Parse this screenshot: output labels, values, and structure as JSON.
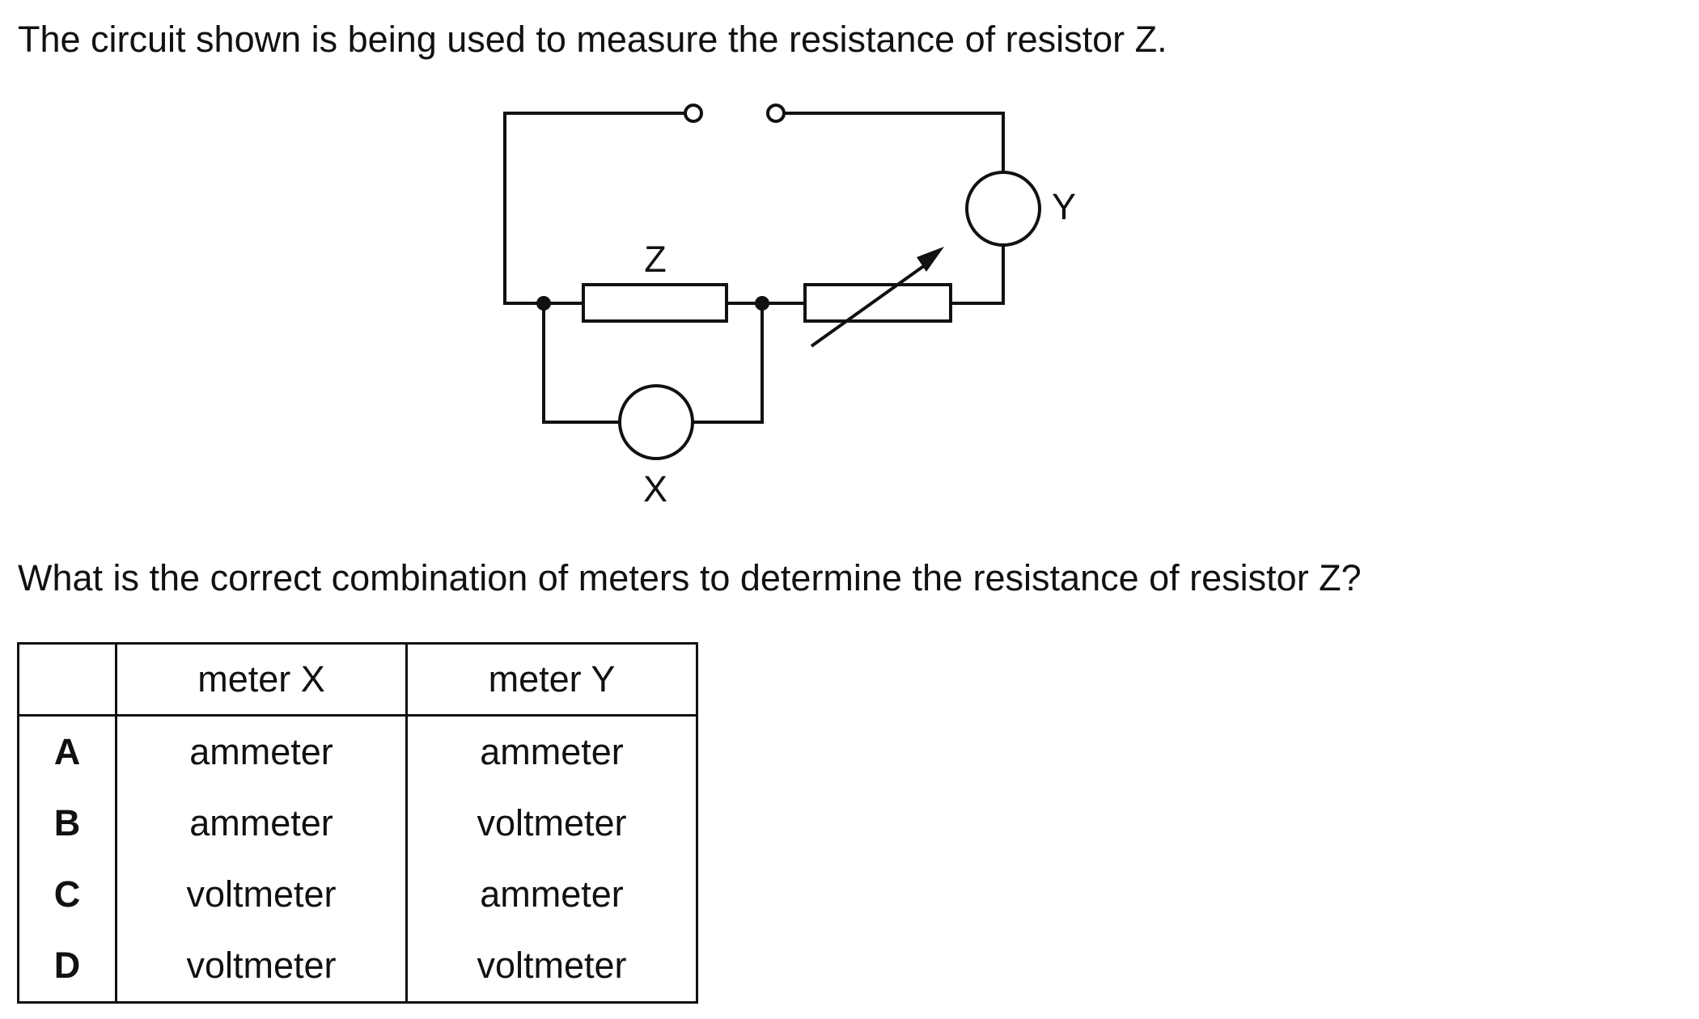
{
  "question": {
    "intro": "The circuit shown is being used to measure the resistance of resistor Z.",
    "prompt": "What is the correct combination of meters to determine the resistance of resistor Z?"
  },
  "diagram": {
    "label_z": "Z",
    "label_x": "X",
    "label_y": "Y"
  },
  "table": {
    "headers": [
      "",
      "meter X",
      "meter Y"
    ],
    "rows": [
      {
        "key": "A",
        "meter_x": "ammeter",
        "meter_y": "ammeter"
      },
      {
        "key": "B",
        "meter_x": "ammeter",
        "meter_y": "voltmeter"
      },
      {
        "key": "C",
        "meter_x": "voltmeter",
        "meter_y": "ammeter"
      },
      {
        "key": "D",
        "meter_x": "voltmeter",
        "meter_y": "voltmeter"
      }
    ]
  }
}
